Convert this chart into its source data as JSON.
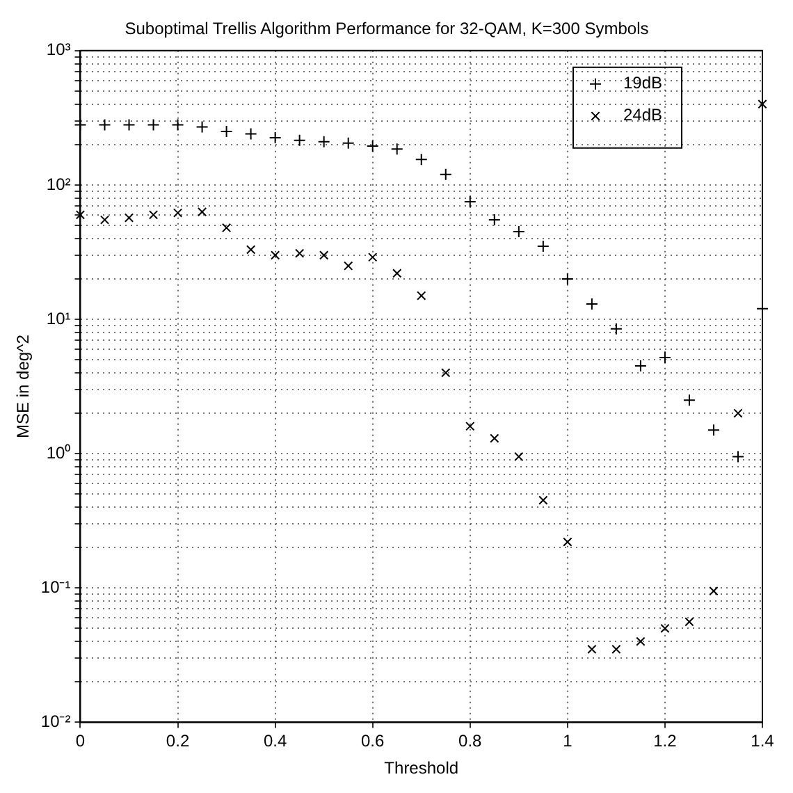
{
  "chart_data": {
    "type": "scatter",
    "title": "Suboptimal Trellis Algorithm Performance for 32-QAM, K=300 Symbols",
    "xlabel": "Threshold",
    "ylabel": "MSE in deg^2",
    "x": [
      0,
      0.05,
      0.1,
      0.15,
      0.2,
      0.25,
      0.3,
      0.35,
      0.4,
      0.45,
      0.5,
      0.55,
      0.6,
      0.65,
      0.7,
      0.75,
      0.8,
      0.85,
      0.9,
      0.95,
      1.0,
      1.05,
      1.1,
      1.15,
      1.2,
      1.25,
      1.3,
      1.35,
      1.4
    ],
    "series": [
      {
        "name": "19dB",
        "color": "#000000",
        "marker": "cross",
        "values": [
          280,
          280,
          280,
          280,
          280,
          270,
          250,
          240,
          225,
          215,
          210,
          205,
          195,
          185,
          155,
          120,
          75,
          55,
          45,
          35,
          20,
          13,
          8.5,
          4.5,
          5.2,
          2.5,
          1.5,
          0.95,
          12
        ]
      },
      {
        "name": "24dB",
        "color": "#000000",
        "marker": "x",
        "values": [
          60,
          55,
          57,
          60,
          62,
          63,
          48,
          33,
          30,
          31,
          30,
          25,
          29,
          22,
          15,
          4,
          1.6,
          1.3,
          0.95,
          0.45,
          0.22,
          0.035,
          0.035,
          0.04,
          0.05,
          0.056,
          0.095,
          2.0,
          400
        ]
      }
    ],
    "log": "y",
    "xlim": [
      0,
      1.4
    ],
    "xticks": [
      0,
      0.2,
      0.4,
      0.6,
      0.8,
      1,
      1.2,
      1.4
    ],
    "ylim": [
      0.01,
      1000
    ],
    "yticks": [
      {
        "value": 0.01,
        "label": "10⁻²"
      },
      {
        "value": 0.02,
        "label": null
      },
      {
        "value": 0.03,
        "label": null
      },
      {
        "value": 0.04,
        "label": null
      },
      {
        "value": 0.05,
        "label": null
      },
      {
        "value": 0.06,
        "label": null
      },
      {
        "value": 0.07,
        "label": null
      },
      {
        "value": 0.08,
        "label": null
      },
      {
        "value": 0.09,
        "label": null
      },
      {
        "value": 0.1,
        "label": "10⁻¹"
      },
      {
        "value": 0.2,
        "label": null
      },
      {
        "value": 0.3,
        "label": null
      },
      {
        "value": 0.4,
        "label": null
      },
      {
        "value": 0.5,
        "label": null
      },
      {
        "value": 0.6,
        "label": null
      },
      {
        "value": 0.7,
        "label": null
      },
      {
        "value": 0.8,
        "label": null
      },
      {
        "value": 0.9,
        "label": null
      },
      {
        "value": 1,
        "label": "10⁰"
      },
      {
        "value": 2,
        "label": null
      },
      {
        "value": 3,
        "label": null
      },
      {
        "value": 4,
        "label": null
      },
      {
        "value": 5,
        "label": null
      },
      {
        "value": 6,
        "label": null
      },
      {
        "value": 7,
        "label": null
      },
      {
        "value": 8,
        "label": null
      },
      {
        "value": 9,
        "label": null
      },
      {
        "value": 10,
        "label": "10¹"
      },
      {
        "value": 20,
        "label": null
      },
      {
        "value": 30,
        "label": null
      },
      {
        "value": 40,
        "label": null
      },
      {
        "value": 50,
        "label": null
      },
      {
        "value": 60,
        "label": null
      },
      {
        "value": 70,
        "label": null
      },
      {
        "value": 80,
        "label": null
      },
      {
        "value": 90,
        "label": null
      },
      {
        "value": 100,
        "label": "10²"
      },
      {
        "value": 200,
        "label": null
      },
      {
        "value": 300,
        "label": null
      },
      {
        "value": 400,
        "label": null
      },
      {
        "value": 500,
        "label": null
      },
      {
        "value": 600,
        "label": null
      },
      {
        "value": 700,
        "label": null
      },
      {
        "value": 800,
        "label": null
      },
      {
        "value": 900,
        "label": null
      },
      {
        "value": 1000,
        "label": "10³"
      }
    ],
    "grid": true,
    "legend": "top right"
  }
}
